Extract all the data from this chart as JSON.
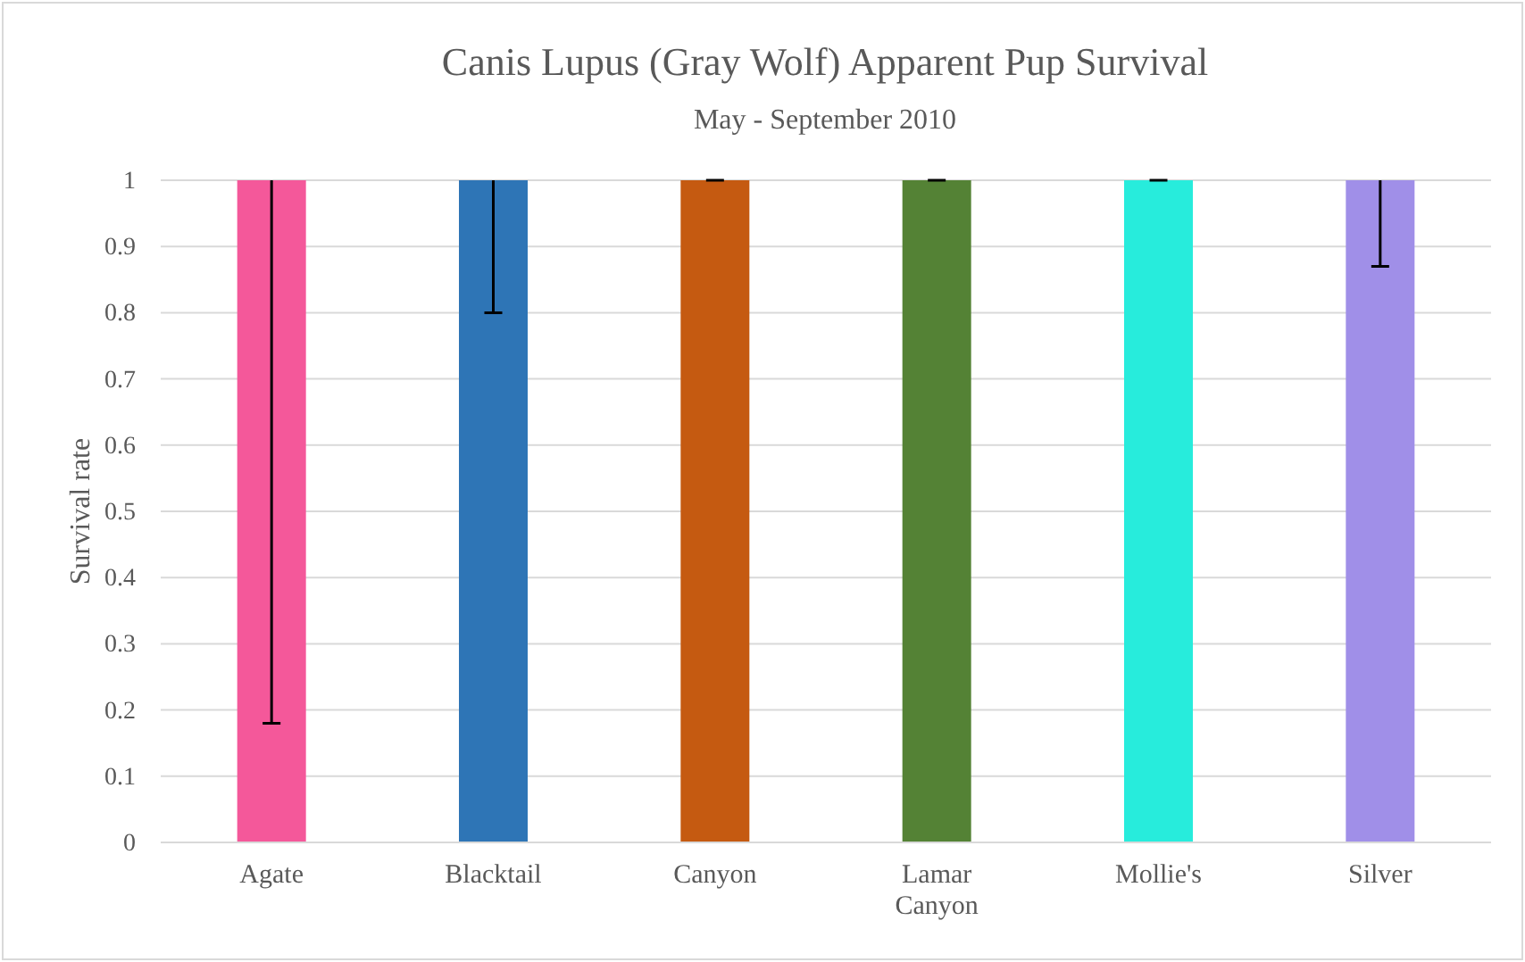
{
  "chart_data": {
    "type": "bar",
    "title": "Canis Lupus (Gray Wolf) Apparent Pup Survival",
    "subtitle": "May - September 2010",
    "ylabel": "Survival rate",
    "categories": [
      "Agate",
      "Blacktail",
      "Canyon",
      "Lamar Canyon",
      "Mollie's",
      "Silver"
    ],
    "values": [
      1,
      1,
      1,
      1,
      1,
      1
    ],
    "colors": [
      "#f4589a",
      "#2e75b6",
      "#c55a11",
      "#548235",
      "#27ecdc",
      "#a08fe8"
    ],
    "errors": [
      [
        0.18,
        1
      ],
      [
        0.8,
        1
      ],
      [
        1,
        1
      ],
      [
        1,
        1
      ],
      [
        1,
        1
      ],
      [
        0.87,
        1
      ]
    ],
    "ylim": [
      0,
      1
    ],
    "yticks": [
      0,
      0.1,
      0.2,
      0.3,
      0.4,
      0.5,
      0.6,
      0.7,
      0.8,
      0.9,
      1
    ],
    "grid": "y"
  }
}
